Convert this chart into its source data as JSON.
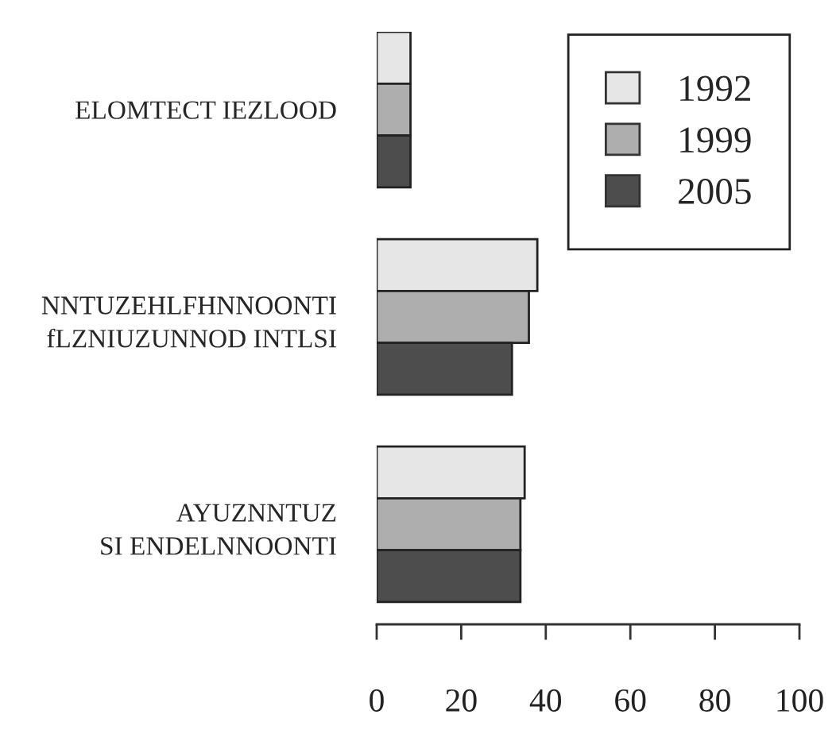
{
  "chart_data": {
    "type": "bar",
    "orientation": "horizontal",
    "categories": [
      "ELOMTECT IEZLOOD",
      "NNTUZEHLFHNNOONTI\nfLZNIUZUNNOD INTLSI",
      "AYUZNNTUZ\nSI ENDELNNOONTI"
    ],
    "series": [
      {
        "name": "1992",
        "color": "#e6e6e6",
        "values": [
          8,
          38,
          35
        ]
      },
      {
        "name": "1999",
        "color": "#aeaeae",
        "values": [
          8,
          36,
          34
        ]
      },
      {
        "name": "2005",
        "color": "#4d4d4d",
        "values": [
          8,
          32,
          34
        ]
      }
    ],
    "xlim": [
      0,
      100
    ],
    "xticks": [
      0,
      20,
      40,
      60,
      80,
      100
    ],
    "legend": "top right"
  }
}
